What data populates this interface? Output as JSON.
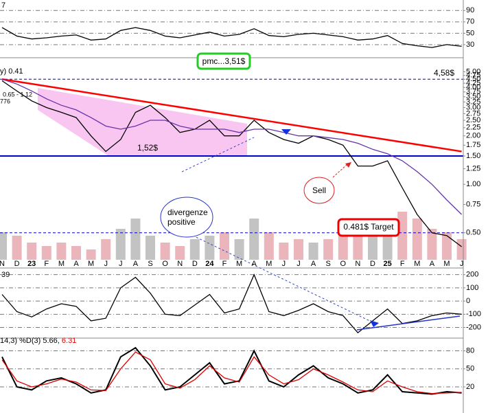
{
  "chart_data": [
    {
      "type": "line",
      "title": "7",
      "series": [
        {
          "color": "#000000",
          "values": [
            60,
            45,
            40,
            42,
            45,
            47,
            38,
            40,
            55,
            60,
            55,
            45,
            42,
            47,
            52,
            45,
            48,
            58,
            46,
            44,
            48,
            50,
            47,
            44,
            38,
            40,
            46,
            32,
            28,
            25,
            30,
            27
          ]
        }
      ],
      "ylim": [
        10,
        100
      ],
      "yticks": [
        90,
        70,
        50,
        30
      ],
      "grid": true
    },
    {
      "type": "line",
      "log_scale": true,
      "title": "y) 0.41",
      "subtitle": "0.65 - 1.12",
      "note": "776",
      "categories": [
        "N",
        "D",
        "23",
        "F",
        "M",
        "A",
        "M",
        "J",
        "J",
        "A",
        "S",
        "O",
        "N",
        "D",
        "24",
        "F",
        "M",
        "A",
        "M",
        "J",
        "J",
        "A",
        "S",
        "O",
        "N",
        "D",
        "25",
        "F",
        "M",
        "A",
        "M",
        "J"
      ],
      "series": [
        {
          "color": "#000000",
          "values": [
            4.4,
            3.8,
            3.3,
            3.0,
            2.8,
            2.6,
            2.0,
            1.6,
            1.9,
            2.8,
            3.1,
            2.6,
            2.1,
            2.2,
            2.5,
            2.0,
            2.0,
            2.5,
            2.1,
            1.9,
            1.8,
            2.0,
            1.9,
            1.75,
            1.3,
            1.3,
            1.4,
            0.95,
            0.65,
            0.5,
            0.48,
            0.41
          ]
        },
        {
          "color": "#6633aa",
          "values": [
            4.5,
            4.2,
            3.8,
            3.4,
            3.1,
            2.9,
            2.6,
            2.3,
            2.2,
            2.3,
            2.5,
            2.5,
            2.3,
            2.2,
            2.2,
            2.2,
            2.1,
            2.2,
            2.2,
            2.1,
            2.0,
            2.0,
            1.95,
            1.9,
            1.8,
            1.65,
            1.55,
            1.4,
            1.2,
            1.0,
            0.8,
            0.65
          ]
        },
        {
          "color": "#e8a8b0",
          "axis": "y2",
          "values": [
            40,
            35,
            25,
            20,
            25,
            20,
            15,
            30,
            45,
            60,
            35,
            25,
            20,
            30,
            35,
            40,
            30,
            60,
            40,
            25,
            30,
            25,
            30,
            40,
            50,
            45,
            55,
            70,
            60,
            45,
            40,
            30
          ]
        }
      ],
      "ylim": [
        0.34,
        5.6
      ],
      "yticks": [
        {
          "value": 5,
          "label": "5.00"
        },
        {
          "value": 4.75,
          "label": "4.75"
        },
        {
          "value": 4.5,
          "label": "4.50"
        },
        {
          "value": 4.25,
          "label": "4.25"
        },
        {
          "value": 4,
          "label": "4.00"
        },
        {
          "value": 3.75,
          "label": "3.75"
        },
        {
          "value": 3.5,
          "label": "3.50"
        },
        {
          "value": 3.25,
          "label": "3.25"
        },
        {
          "value": 3,
          "label": "3.00"
        },
        {
          "value": 2.75,
          "label": "2.75"
        },
        {
          "value": 2.5,
          "label": "2.50"
        },
        {
          "value": 2.25,
          "label": "2.25"
        },
        {
          "value": 2,
          "label": "2.00"
        },
        {
          "value": 1.75,
          "label": "1.75"
        },
        {
          "value": 1.5,
          "label": "1.50"
        },
        {
          "value": 1.25,
          "label": "1.25"
        },
        {
          "value": 1,
          "label": "1.00"
        },
        {
          "value": 0.75,
          "label": "0.75"
        },
        {
          "value": 0.5,
          "label": "0.50"
        }
      ],
      "y2lim": [
        0,
        100
      ],
      "levels": [
        {
          "value": 4.5,
          "color": "#0000cc",
          "dashed": true
        },
        {
          "value": 1.5,
          "color": "#0000cc",
          "dashed": false
        },
        {
          "value": 0.5,
          "color": "#0000cc",
          "dashed": true
        }
      ],
      "trendline": {
        "start": 4.5,
        "end": 1.6,
        "color": "#ff0000"
      },
      "annotations": [
        "pmc...3,51$",
        "4,58$",
        "1,52$",
        "Sell",
        "divergenze",
        "positive",
        "0.481$ Target"
      ]
    },
    {
      "type": "line",
      "title": "39",
      "series": [
        {
          "color": "#000000",
          "values": [
            50,
            -80,
            -120,
            -60,
            -20,
            -40,
            -150,
            -130,
            100,
            180,
            60,
            -100,
            -110,
            -30,
            50,
            -90,
            -60,
            200,
            -80,
            -110,
            -70,
            -20,
            -80,
            -110,
            -240,
            -150,
            -60,
            -170,
            -150,
            -110,
            -90,
            -100
          ]
        }
      ],
      "ylim": [
        -270,
        240
      ],
      "yticks": [
        200,
        100,
        0,
        -100,
        -200
      ],
      "grid": true
    },
    {
      "type": "line",
      "title": "14,3) %D(3) 5.66,",
      "subtitle": "6.31",
      "series": [
        {
          "color": "#000000",
          "values": [
            70,
            20,
            15,
            30,
            35,
            25,
            10,
            15,
            70,
            85,
            55,
            15,
            20,
            40,
            60,
            25,
            30,
            80,
            30,
            20,
            40,
            55,
            35,
            25,
            10,
            15,
            40,
            12,
            10,
            8,
            12,
            10
          ]
        },
        {
          "color": "#dd0000",
          "values": [
            65,
            30,
            20,
            25,
            33,
            28,
            15,
            14,
            50,
            78,
            65,
            25,
            18,
            32,
            55,
            35,
            28,
            70,
            40,
            25,
            32,
            50,
            40,
            28,
            15,
            12,
            30,
            20,
            12,
            9,
            10,
            11
          ]
        }
      ],
      "ylim": [
        -20,
        100
      ],
      "yticks": [
        80,
        50,
        20
      ],
      "grid": true
    }
  ]
}
